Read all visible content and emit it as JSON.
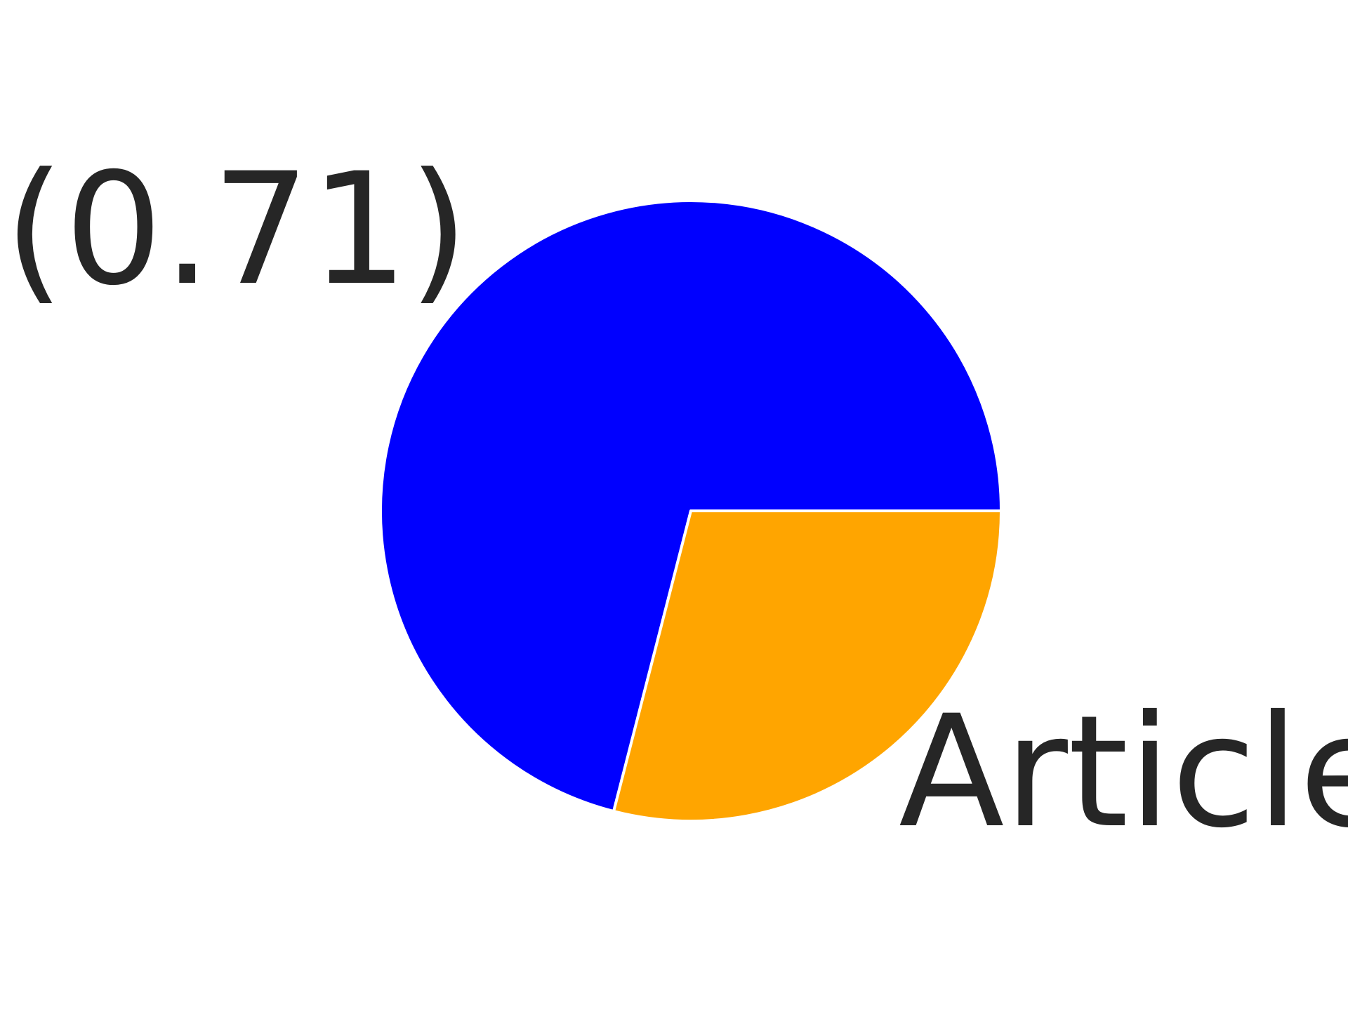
{
  "chart_data": {
    "type": "pie",
    "title": "",
    "start_angle_deg": 0,
    "direction": "counterclockwise",
    "slices": [
      {
        "label": "(0.71)",
        "value": 0.71,
        "color": "#0000ff"
      },
      {
        "label": "Article",
        "value": 0.29,
        "color": "#ffa500"
      }
    ],
    "edge_color": "#ffffff"
  }
}
